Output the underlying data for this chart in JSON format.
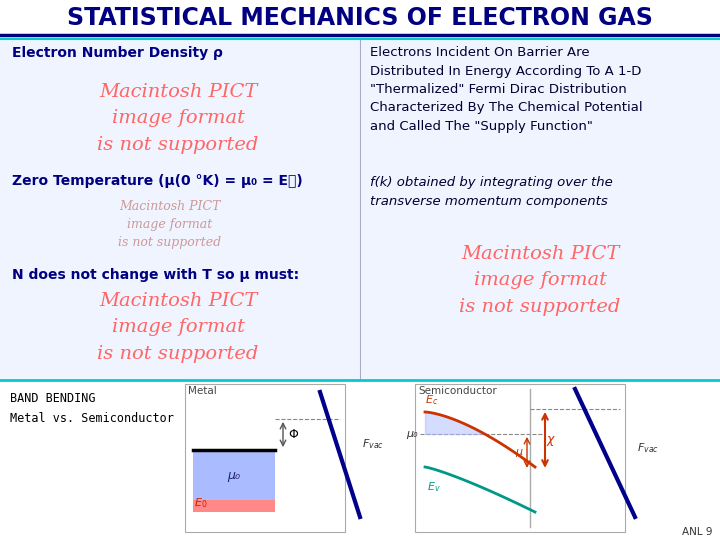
{
  "title": "STATISTICAL MECHANICS OF ELECTRON GAS",
  "title_color": "#000080",
  "bg_color": "#ffffff",
  "title_fontsize": 17,
  "left_panel": {
    "text1": "Electron Number Density ρ",
    "pict1": "Macintosh PICT\nimage format\nis not supported",
    "text2": "Zero Temperature (μ(0 °K) = μ₀ = E₟)",
    "pict2": "Macintosh PICT\nimage format\nis not supported",
    "text3": "N does not change with T so μ must:",
    "pict3": "Macintosh PICT\nimage format\nis not supported"
  },
  "right_panel": {
    "text1": "Electrons Incident On Barrier Are\nDistributed In Energy According To A 1-D\n\"Thermalized\" Fermi Dirac Distribution\nCharacterized By The Chemical Potential\nand Called The \"Supply Function\"",
    "text2": "f(k) obtained by integrating over the\ntransverse momentum components",
    "pict": "Macintosh PICT\nimage format\nis not supported"
  },
  "bottom_left_label": "BAND BENDING\nMetal vs. Semiconductor",
  "metal_label": "Metal",
  "semiconductor_label": "Semiconductor",
  "anl_label": "ANL 9",
  "header_line1_color": "#000080",
  "header_line2_color": "#00cccc",
  "bottom_line_color": "#00cccc",
  "pict_large_color": "#ff6666",
  "pict_small_color": "#cc9999"
}
